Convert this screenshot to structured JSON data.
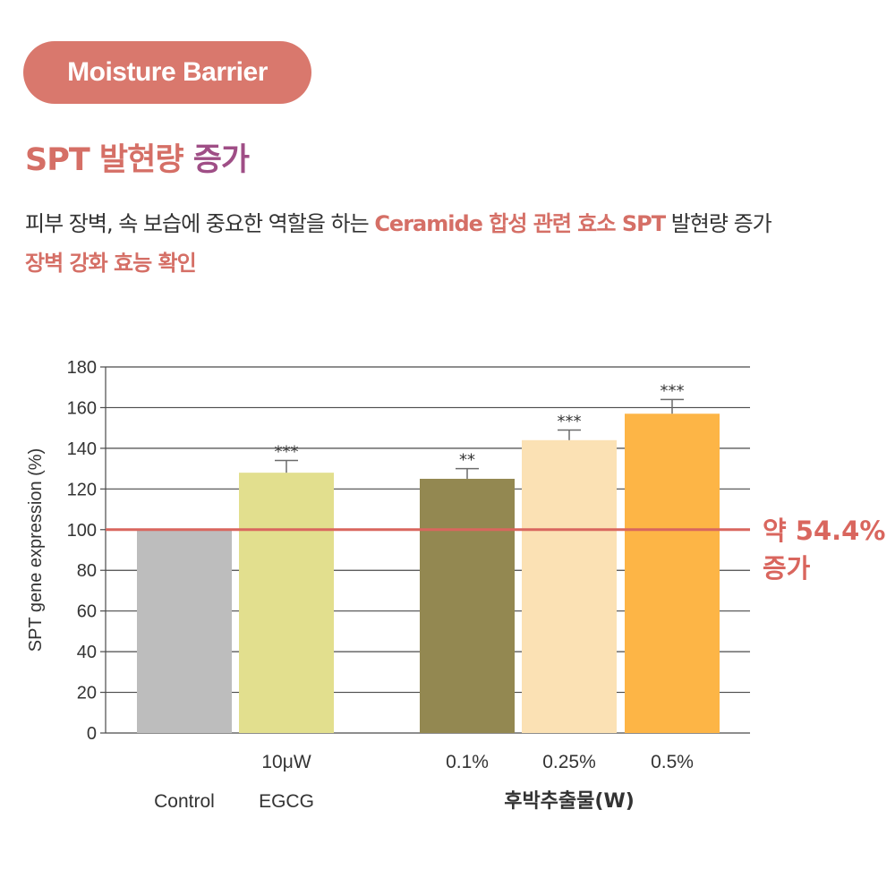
{
  "badge": "Moisture Barrier",
  "headline": {
    "part1": "SPT 발현량",
    "part2": "증가"
  },
  "description": {
    "line1_plain": "피부 장벽, 속 보습에 중요한 역할을 하는 ",
    "line1_highlight": "Ceramide 합성 관련 효소 SPT",
    "line1_tail": " 발현량 증가",
    "line2": "장벽 강화 효능 확인"
  },
  "annotation": {
    "line1": "약 54.4%",
    "line2": "증가"
  },
  "colors": {
    "accent": "#d9786d",
    "reference_line": "#d9665e",
    "bars": [
      "#bdbdbd",
      "#e2df8e",
      "#938851",
      "#fbe1b4",
      "#fdb546"
    ]
  },
  "chart_data": {
    "type": "bar",
    "categories": [
      "Control",
      "10μW EGCG",
      "0.1%",
      "0.25%",
      "0.5%"
    ],
    "tick_labels_top": [
      "",
      "10μW",
      "0.1%",
      "0.25%",
      "0.5%"
    ],
    "tick_labels_bottom": [
      "Control",
      "EGCG"
    ],
    "group_label": "후박추출물(W)",
    "values": [
      100,
      128,
      125,
      144,
      157
    ],
    "error": [
      0,
      6,
      5,
      5,
      7
    ],
    "significance": [
      "",
      "***",
      "**",
      "***",
      "***"
    ],
    "ylabel": "SPT gene expression (%)",
    "xlabel": "",
    "ylim": [
      0,
      180
    ],
    "yticks": [
      "0",
      "20",
      "40",
      "60",
      "80",
      "100",
      "120",
      "140",
      "160",
      "180"
    ],
    "reference_line": 100,
    "grid": true
  }
}
